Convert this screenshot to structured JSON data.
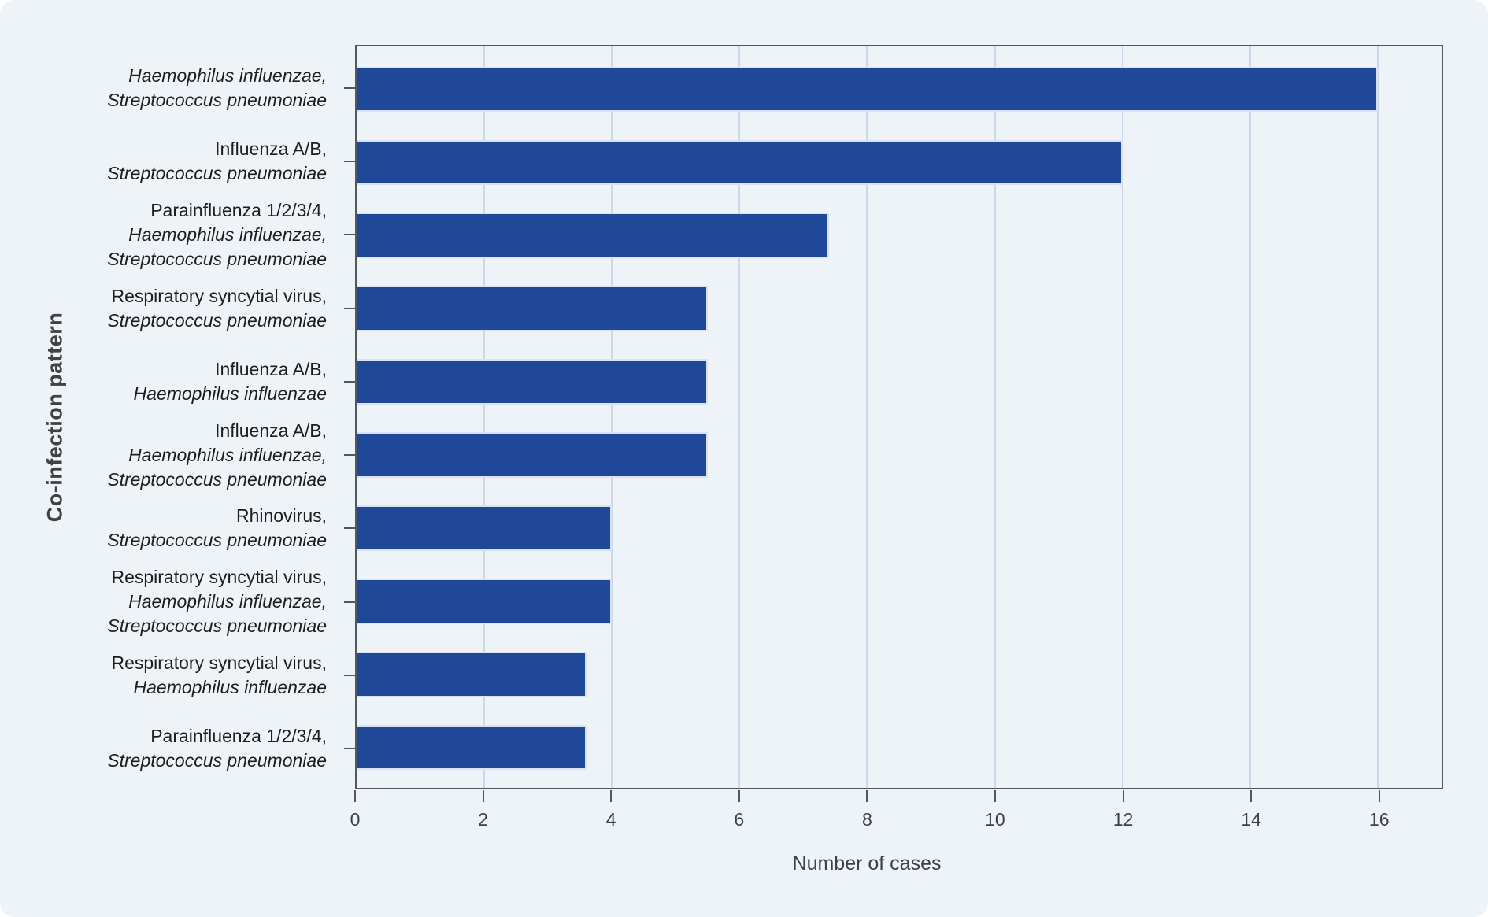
{
  "figure": {
    "card_background": "#eef3f8",
    "page_background": "#ffffff"
  },
  "chart_data": {
    "type": "bar",
    "orientation": "horizontal",
    "title": "",
    "xlabel": "Number of cases",
    "ylabel": "Co-infection pattern",
    "xlim": [
      0,
      17
    ],
    "xticks": [
      0,
      2,
      4,
      6,
      8,
      10,
      12,
      14,
      16
    ],
    "grid": "vertical gridlines every 2 units, behind bars",
    "legend": "none",
    "bar_color": "#1f4899",
    "bar_edge_color": "#d9e2f1",
    "gridline_color": "#ccd7ec",
    "axis_color": "#54575b",
    "categories": [
      {
        "label_lines": [
          {
            "text": "Haemophilus influenzae,",
            "italic": true
          },
          {
            "text": "Streptococcus pneumoniae",
            "italic": true
          }
        ],
        "value": 16
      },
      {
        "label_lines": [
          {
            "text": "Influenza A/B,",
            "italic": false
          },
          {
            "text": "Streptococcus pneumoniae",
            "italic": true
          }
        ],
        "value": 12
      },
      {
        "label_lines": [
          {
            "text": "Parainfluenza 1/2/3/4,",
            "italic": false
          },
          {
            "text": "Haemophilus influenzae,",
            "italic": true
          },
          {
            "text": "Streptococcus pneumoniae",
            "italic": true
          }
        ],
        "value": 7.4
      },
      {
        "label_lines": [
          {
            "text": "Respiratory syncytial virus,",
            "italic": false
          },
          {
            "text": "Streptococcus pneumoniae",
            "italic": true
          }
        ],
        "value": 5.5
      },
      {
        "label_lines": [
          {
            "text": "Influenza A/B,",
            "italic": false
          },
          {
            "text": "Haemophilus influenzae",
            "italic": true
          }
        ],
        "value": 5.5
      },
      {
        "label_lines": [
          {
            "text": "Influenza A/B,",
            "italic": false
          },
          {
            "text": "Haemophilus influenzae,",
            "italic": true
          },
          {
            "text": "Streptococcus pneumoniae",
            "italic": true
          }
        ],
        "value": 5.5
      },
      {
        "label_lines": [
          {
            "text": "Rhinovirus,",
            "italic": false
          },
          {
            "text": "Streptococcus pneumoniae",
            "italic": true
          }
        ],
        "value": 4
      },
      {
        "label_lines": [
          {
            "text": "Respiratory syncytial virus,",
            "italic": false
          },
          {
            "text": "Haemophilus influenzae,",
            "italic": true
          },
          {
            "text": "Streptococcus pneumoniae",
            "italic": true
          }
        ],
        "value": 4
      },
      {
        "label_lines": [
          {
            "text": "Respiratory syncytial virus,",
            "italic": false
          },
          {
            "text": "Haemophilus influenzae",
            "italic": true
          }
        ],
        "value": 3.6
      },
      {
        "label_lines": [
          {
            "text": "Parainfluenza 1/2/3/4,",
            "italic": false
          },
          {
            "text": "Streptococcus pneumoniae",
            "italic": true
          }
        ],
        "value": 3.6
      }
    ]
  }
}
